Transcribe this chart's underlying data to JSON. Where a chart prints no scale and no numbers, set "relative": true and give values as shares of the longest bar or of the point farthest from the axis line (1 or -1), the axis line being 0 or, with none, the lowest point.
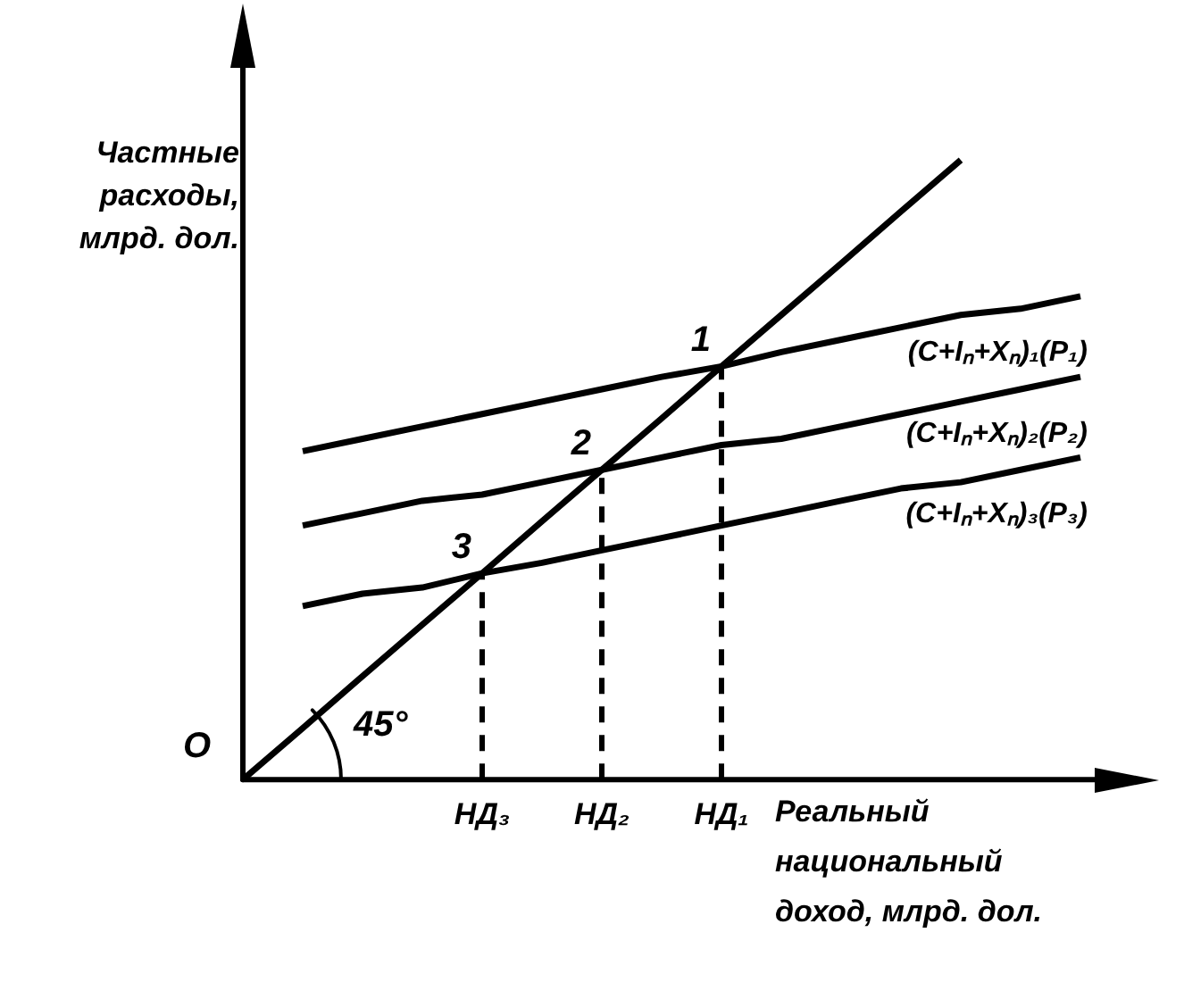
{
  "chart_data": {
    "type": "line",
    "relative": true,
    "ylabel": "Частные расходы, млрд. дол.",
    "xlabel": "Реальный национальный доход, млрд. дол.",
    "categories": [
      null,
      null,
      null,
      null,
      "НД₃",
      null,
      "НД₂",
      null,
      "НД₁",
      null,
      null,
      null,
      null,
      null,
      null
    ],
    "series": [
      {
        "color": "#000000",
        "values": [
          0,
          0.083,
          0.167,
          0.25,
          0.333,
          0.417,
          0.5,
          0.583,
          0.667,
          0.75,
          0.833,
          0.917,
          1.0,
          null,
          null
        ]
      },
      {
        "name": "(C+Iₙ+Xₙ)₁(P₁)",
        "color": "#000000",
        "values": [
          null,
          0.53,
          0.55,
          0.57,
          0.59,
          0.61,
          0.63,
          0.65,
          0.667,
          0.69,
          0.71,
          0.73,
          0.75,
          0.76,
          0.78
        ]
      },
      {
        "name": "(C+Iₙ+Xₙ)₂(P₂)",
        "color": "#000000",
        "values": [
          null,
          0.41,
          0.43,
          0.45,
          0.46,
          0.48,
          0.5,
          0.52,
          0.54,
          0.55,
          0.57,
          0.59,
          0.61,
          0.63,
          0.65
        ]
      },
      {
        "name": "(C+Iₙ+Xₙ)₃(P₃)",
        "color": "#000000",
        "values": [
          null,
          0.28,
          0.3,
          0.31,
          0.333,
          0.35,
          0.37,
          0.39,
          0.41,
          0.43,
          0.45,
          0.47,
          0.48,
          0.5,
          0.52
        ]
      }
    ],
    "ref_lines": [
      {
        "axis": "x",
        "value": "НД₃",
        "line_style": "dashed"
      },
      {
        "axis": "x",
        "value": "НД₂",
        "line_style": "dashed"
      },
      {
        "axis": "x",
        "value": "НД₁",
        "line_style": "dashed"
      }
    ],
    "annotations": [
      "O",
      "45°",
      {
        "text": "3",
        "x": "НД₃",
        "y": 0.333
      },
      {
        "text": "2",
        "x": "НД₂",
        "y": 0.5
      },
      {
        "text": "1",
        "x": "НД₁",
        "y": 0.667
      }
    ],
    "grid": false,
    "legend": false,
    "marker": "none",
    "line_style": "solid"
  }
}
